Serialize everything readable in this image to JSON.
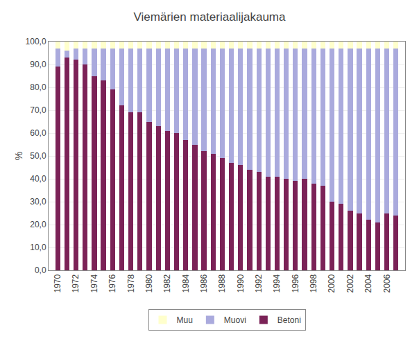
{
  "chart_data": {
    "type": "bar",
    "title": "Viemärien materiaalijakauma",
    "y_label": "%",
    "x": [
      1970,
      1971,
      1972,
      1973,
      1974,
      1975,
      1976,
      1977,
      1978,
      1979,
      1980,
      1981,
      1982,
      1983,
      1984,
      1985,
      1986,
      1987,
      1988,
      1989,
      1990,
      1991,
      1992,
      1993,
      1994,
      1995,
      1996,
      1997,
      1998,
      1999,
      2000,
      2001,
      2002,
      2003,
      2004,
      2005,
      2006,
      2007
    ],
    "series": [
      {
        "name": "Betoni",
        "color": "#7B2257",
        "values": [
          89,
          93,
          92,
          90,
          85,
          83,
          79,
          72,
          69,
          69,
          65,
          63,
          61,
          60,
          57,
          55,
          52,
          51,
          49,
          47,
          46,
          44,
          43,
          41,
          41,
          40,
          39,
          40,
          38,
          37,
          30,
          29,
          26,
          25,
          22,
          21,
          25,
          24
        ]
      },
      {
        "name": "Muovi",
        "color": "#AAAADD",
        "values": [
          8,
          3,
          5,
          7,
          12,
          14,
          18,
          25,
          28,
          28,
          32,
          34,
          36,
          37,
          40,
          42,
          45,
          46,
          48,
          50,
          51,
          53,
          54,
          56,
          56,
          57,
          58,
          57,
          59,
          60,
          67,
          68,
          71,
          72,
          75,
          76,
          72,
          73
        ]
      },
      {
        "name": "Muu",
        "color": "#FFFFCC",
        "values": [
          3,
          4,
          3,
          3,
          3,
          3,
          3,
          3,
          3,
          3,
          3,
          3,
          3,
          3,
          3,
          3,
          3,
          3,
          3,
          3,
          3,
          3,
          3,
          3,
          3,
          3,
          3,
          3,
          3,
          3,
          3,
          3,
          3,
          3,
          3,
          3,
          3,
          3
        ]
      }
    ],
    "stacked": true,
    "xlim": [
      1969.0,
      2008.0
    ],
    "xticks": [
      1970,
      1972,
      1974,
      1976,
      1978,
      1980,
      1982,
      1984,
      1986,
      1988,
      1990,
      1992,
      1994,
      1996,
      1998,
      2000,
      2002,
      2004,
      2006
    ],
    "ylim": [
      0,
      100
    ],
    "yticks": [
      {
        "value": 0,
        "label": "0,0"
      },
      {
        "value": 10,
        "label": "10,0"
      },
      {
        "value": 20,
        "label": "20,0"
      },
      {
        "value": 30,
        "label": "30,0"
      },
      {
        "value": 40,
        "label": "40,0"
      },
      {
        "value": 50,
        "label": "50,0"
      },
      {
        "value": 60,
        "label": "60,0"
      },
      {
        "value": 70,
        "label": "70,0"
      },
      {
        "value": 80,
        "label": "80,0"
      },
      {
        "value": 90,
        "label": "90,0"
      },
      {
        "value": 100,
        "label": "100,0"
      }
    ],
    "grid": true,
    "legend": "bottom"
  }
}
